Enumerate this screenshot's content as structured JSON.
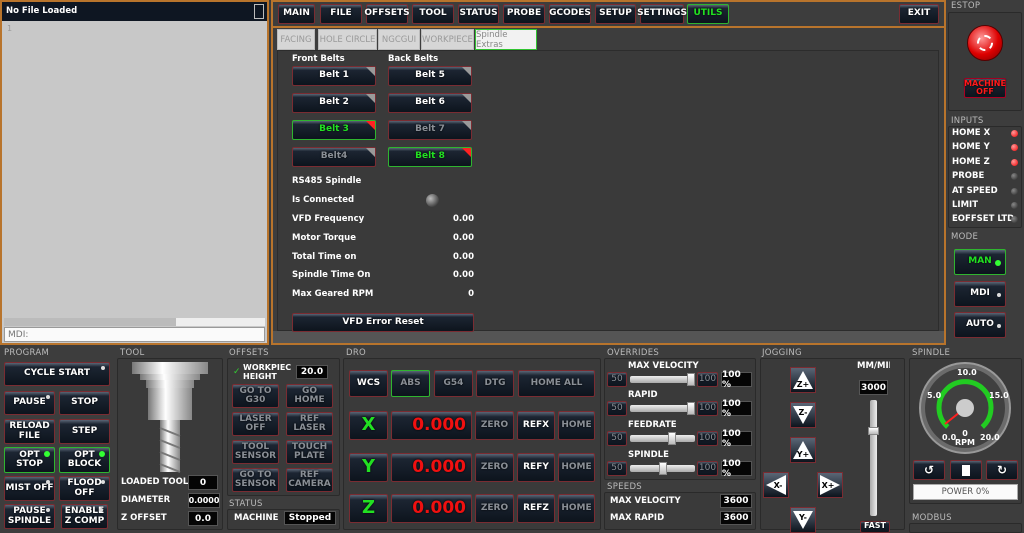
{
  "file_panel": {
    "title": "No File Loaded",
    "line_number": "1",
    "mdi_placeholder": "MDI:"
  },
  "main_tabs": [
    {
      "label": "MAIN"
    },
    {
      "label": "FILE"
    },
    {
      "label": "OFFSETS"
    },
    {
      "label": "TOOL"
    },
    {
      "label": "STATUS"
    },
    {
      "label": "PROBE"
    },
    {
      "label": "GCODES"
    },
    {
      "label": "SETUP"
    },
    {
      "label": "SETTINGS"
    },
    {
      "label": "UTILS",
      "active": true
    }
  ],
  "exit_label": "EXIT",
  "sub_tabs": [
    {
      "label": "FACING"
    },
    {
      "label": "HOLE CIRCLE"
    },
    {
      "label": "NGCGUI"
    },
    {
      "label": "WORKPIECE"
    },
    {
      "label": "Spindle Extras",
      "active": true
    }
  ],
  "belts": {
    "front_label": "Front Belts",
    "back_label": "Back Belts",
    "front": [
      {
        "label": "Belt 1"
      },
      {
        "label": "Belt 2"
      },
      {
        "label": "Belt 3",
        "state": "active"
      },
      {
        "label": "Belt4",
        "state": "disabled"
      }
    ],
    "back": [
      {
        "label": "Belt 5"
      },
      {
        "label": "Belt 6"
      },
      {
        "label": "Belt 7",
        "state": "disabled"
      },
      {
        "label": "Belt 8",
        "state": "active"
      }
    ]
  },
  "rs485": {
    "title": "RS485 Spindle",
    "connected_label": "Is Connected",
    "connected": false,
    "rows": [
      {
        "label": "VFD Frequency",
        "value": "0.00"
      },
      {
        "label": "Motor Torque",
        "value": "0.00"
      },
      {
        "label": "Total Time on",
        "value": "0.00"
      },
      {
        "label": "Spindle Time On",
        "value": "0.00"
      },
      {
        "label": "Max Geared RPM",
        "value": "0"
      }
    ],
    "reset_label": "VFD Error Reset"
  },
  "estop": {
    "label": "ESTOP",
    "machine_label": "MACHINE OFF"
  },
  "inputs": {
    "label": "INPUTS",
    "items": [
      {
        "label": "HOME X",
        "state": "on"
      },
      {
        "label": "HOME Y",
        "state": "on"
      },
      {
        "label": "HOME Z",
        "state": "on"
      },
      {
        "label": "PROBE",
        "state": "off"
      },
      {
        "label": "AT SPEED",
        "state": "off"
      },
      {
        "label": "LIMIT",
        "state": "off"
      },
      {
        "label": "EOFFSET LTD",
        "state": "off"
      }
    ]
  },
  "mode": {
    "label": "MODE",
    "items": [
      {
        "label": "MAN",
        "active": true
      },
      {
        "label": "MDI"
      },
      {
        "label": "AUTO"
      }
    ]
  },
  "program": {
    "label": "PROGRAM",
    "cycle_start": "CYCLE START",
    "buttons": [
      "PAUSE",
      "STOP",
      "RELOAD FILE",
      "STEP",
      "OPT STOP",
      "OPT BLOCK",
      "MIST OFF",
      "FLOOD OFF",
      "PAUSE SPINDLE",
      "ENABLE Z COMP"
    ]
  },
  "tool": {
    "label": "TOOL",
    "rows": [
      {
        "label": "LOADED TOOL",
        "value": "0"
      },
      {
        "label": "DIAMETER",
        "value": "0.0000"
      },
      {
        "label": "Z OFFSET",
        "value": "0.0"
      }
    ]
  },
  "offsets": {
    "label": "OFFSETS",
    "workpiece_label": "WORKPIEC HEIGHT",
    "workpiece_value": "20.0",
    "buttons": [
      "GO TO G30",
      "GO HOME",
      "LASER OFF",
      "REF LASER",
      "TOOL SENSOR",
      "TOUCH PLATE",
      "GO TO SENSOR",
      "REF CAMERA"
    ]
  },
  "status": {
    "label": "STATUS",
    "machine_label": "MACHINE",
    "machine_value": "Stopped"
  },
  "dro": {
    "label": "DRO",
    "modes": [
      "WCS",
      "ABS",
      "G54",
      "DTG",
      "HOME ALL"
    ],
    "active_mode": "ABS",
    "axes": [
      {
        "axis": "X",
        "value": "0.000",
        "ref": "REFX"
      },
      {
        "axis": "Y",
        "value": "0.000",
        "ref": "REFY"
      },
      {
        "axis": "Z",
        "value": "0.000",
        "ref": "REFZ"
      }
    ],
    "zero_label": "ZERO",
    "home_label": "HOME"
  },
  "overrides": {
    "label": "OVERRIDES",
    "min_label": "50",
    "max_label": "100",
    "items": [
      {
        "label": "MAX VELOCITY",
        "value": "100 %",
        "fraction": 1.0
      },
      {
        "label": "RAPID",
        "value": "100 %",
        "fraction": 1.0
      },
      {
        "label": "FEEDRATE",
        "value": "100 %",
        "fraction": 0.67
      },
      {
        "label": "SPINDLE",
        "value": "100 %",
        "fraction": 0.5
      }
    ]
  },
  "speeds": {
    "label": "SPEEDS",
    "items": [
      {
        "label": "MAX VELOCITY",
        "value": "3600"
      },
      {
        "label": "MAX RAPID",
        "value": "3600"
      }
    ]
  },
  "jogging": {
    "label": "JOGGING",
    "buttons": [
      "Z+",
      "Z-",
      "Y+",
      "X-",
      "X+",
      "Y-"
    ],
    "unit": "MM/MIN",
    "rate": "3000",
    "fast_label": "FAST",
    "slider_fraction": 0.75
  },
  "spindle": {
    "label": "SPINDLE",
    "gauge_ticks": [
      "0.0",
      "5.0",
      "10.0",
      "15.0",
      "20.0"
    ],
    "rpm": "0",
    "rpm_label": "RPM",
    "power": "POWER 0%",
    "colors": {
      "arc": "#22cc22",
      "needle": "#ff2020"
    }
  },
  "modbus": {
    "label": "MODBUS"
  },
  "colors": {
    "accent_border": "#b8742c",
    "active": "#22e022",
    "dro_value": "#f01010"
  }
}
